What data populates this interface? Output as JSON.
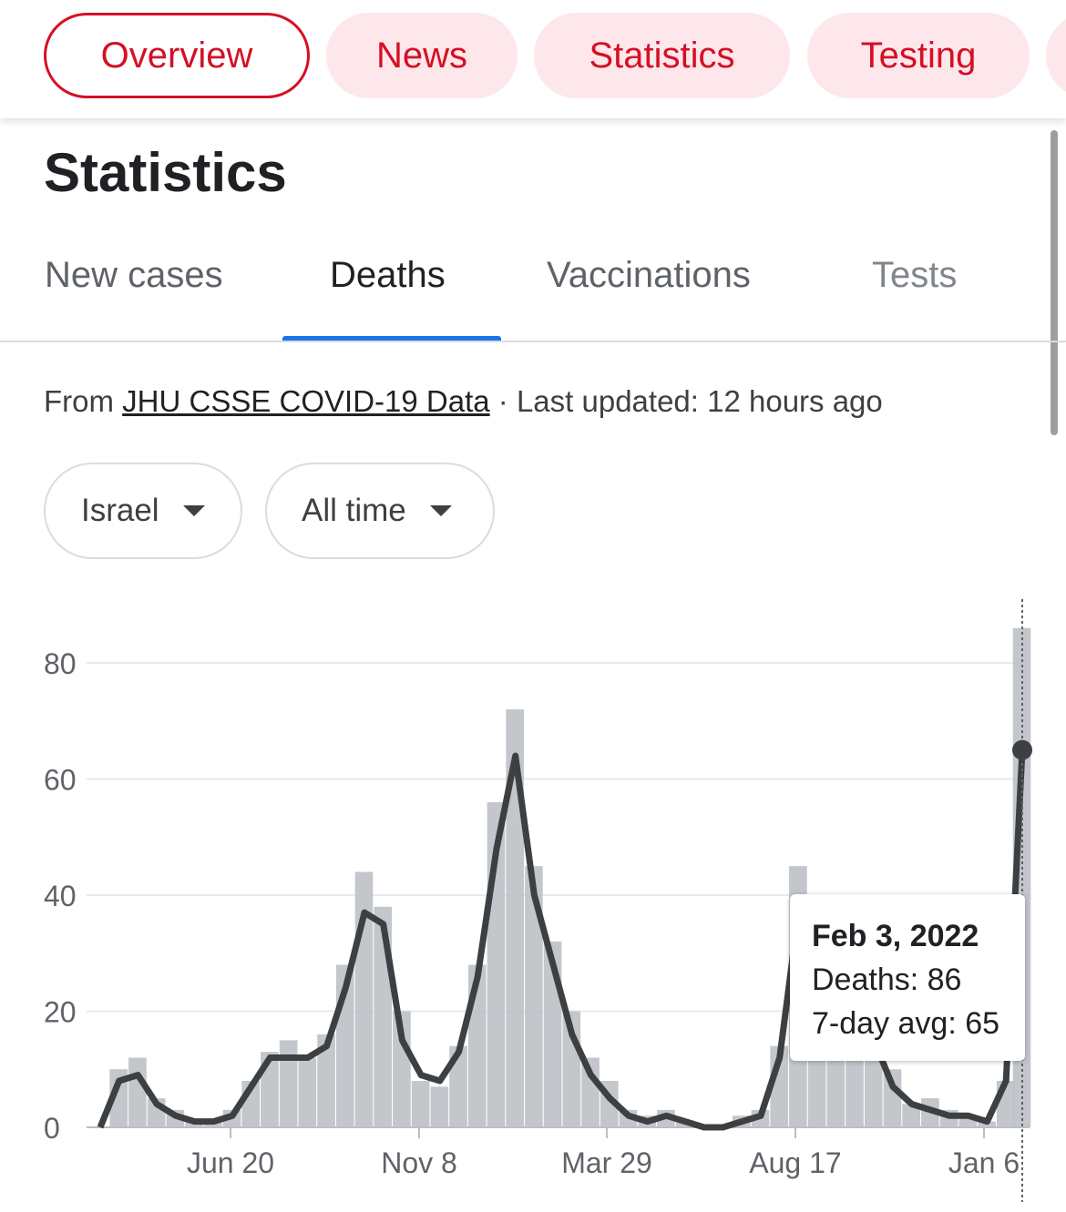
{
  "nav": {
    "chips": [
      {
        "label": "Overview",
        "selected": true
      },
      {
        "label": "News",
        "selected": false
      },
      {
        "label": "Statistics",
        "selected": false
      },
      {
        "label": "Testing",
        "selected": false
      }
    ]
  },
  "page": {
    "title": "Statistics"
  },
  "tabs": [
    {
      "label": "New cases",
      "active": false
    },
    {
      "label": "Deaths",
      "active": true
    },
    {
      "label": "Vaccinations",
      "active": false
    },
    {
      "label": "Tests",
      "active": false
    }
  ],
  "source": {
    "prefix": "From ",
    "link_text": "JHU CSSE COVID-19 Data",
    "suffix": " · Last updated: 12 hours ago"
  },
  "filters": {
    "country": "Israel",
    "range": "All time"
  },
  "tooltip": {
    "date": "Feb 3, 2022",
    "deaths": "Deaths: 86",
    "avg": "7-day avg: 65"
  },
  "colors": {
    "accent_red": "#d50f25",
    "chip_bg": "#fde7ea",
    "tab_underline": "#1a73e8",
    "bar": "#bdc1c6",
    "area": "#bdc1c6",
    "line": "#3c4043"
  },
  "chart_data": {
    "type": "bar",
    "x_ticks": [
      "Jun 20",
      "Nov 8",
      "Mar 29",
      "Aug 17",
      "Jan 6"
    ],
    "y_ticks": [
      0,
      20,
      40,
      60,
      80
    ],
    "ylim": [
      0,
      90
    ],
    "grid": true,
    "series": [
      {
        "name": "Deaths",
        "x": [
          "2020-03-21",
          "2020-04-04",
          "2020-04-18",
          "2020-05-02",
          "2020-05-16",
          "2020-05-30",
          "2020-06-13",
          "2020-06-27",
          "2020-07-11",
          "2020-07-25",
          "2020-08-08",
          "2020-08-22",
          "2020-09-05",
          "2020-09-19",
          "2020-10-03",
          "2020-10-17",
          "2020-10-31",
          "2020-11-14",
          "2020-11-28",
          "2020-12-12",
          "2020-12-26",
          "2021-01-09",
          "2021-01-23",
          "2021-02-06",
          "2021-02-20",
          "2021-03-06",
          "2021-03-20",
          "2021-04-03",
          "2021-04-17",
          "2021-05-01",
          "2021-05-15",
          "2021-05-29",
          "2021-06-12",
          "2021-06-26",
          "2021-07-10",
          "2021-07-24",
          "2021-08-07",
          "2021-08-21",
          "2021-09-04",
          "2021-09-18",
          "2021-10-02",
          "2021-10-16",
          "2021-10-30",
          "2021-11-13",
          "2021-11-27",
          "2021-12-11",
          "2021-12-25",
          "2022-01-08",
          "2022-01-22",
          "2022-02-03"
        ],
        "values": [
          0,
          10,
          12,
          5,
          3,
          1,
          1,
          3,
          8,
          13,
          15,
          12,
          16,
          28,
          44,
          38,
          20,
          8,
          7,
          14,
          28,
          56,
          72,
          45,
          32,
          20,
          12,
          8,
          3,
          2,
          3,
          1,
          0,
          0,
          2,
          3,
          14,
          45,
          40,
          38,
          30,
          20,
          10,
          4,
          5,
          3,
          2,
          1,
          8,
          86
        ]
      },
      {
        "name": "7-day avg",
        "x": [
          "2020-03-21",
          "2020-04-04",
          "2020-04-18",
          "2020-05-02",
          "2020-05-16",
          "2020-05-30",
          "2020-06-13",
          "2020-06-27",
          "2020-07-11",
          "2020-07-25",
          "2020-08-08",
          "2020-08-22",
          "2020-09-05",
          "2020-09-19",
          "2020-10-03",
          "2020-10-17",
          "2020-10-31",
          "2020-11-14",
          "2020-11-28",
          "2020-12-12",
          "2020-12-26",
          "2021-01-09",
          "2021-01-23",
          "2021-02-06",
          "2021-02-20",
          "2021-03-06",
          "2021-03-20",
          "2021-04-03",
          "2021-04-17",
          "2021-05-01",
          "2021-05-15",
          "2021-05-29",
          "2021-06-12",
          "2021-06-26",
          "2021-07-10",
          "2021-07-24",
          "2021-08-07",
          "2021-08-21",
          "2021-09-04",
          "2021-09-18",
          "2021-10-02",
          "2021-10-16",
          "2021-10-30",
          "2021-11-13",
          "2021-11-27",
          "2021-12-11",
          "2021-12-25",
          "2022-01-08",
          "2022-01-22",
          "2022-02-03"
        ],
        "values": [
          0,
          8,
          9,
          4,
          2,
          1,
          1,
          2,
          7,
          12,
          12,
          12,
          14,
          24,
          37,
          35,
          15,
          9,
          8,
          13,
          26,
          48,
          64,
          40,
          28,
          16,
          9,
          5,
          2,
          1,
          2,
          1,
          0,
          0,
          1,
          2,
          12,
          37,
          35,
          33,
          25,
          15,
          7,
          4,
          3,
          2,
          2,
          1,
          8,
          65
        ]
      }
    ],
    "highlight": {
      "date": "Feb 3, 2022",
      "deaths": 86,
      "avg": 65
    }
  }
}
